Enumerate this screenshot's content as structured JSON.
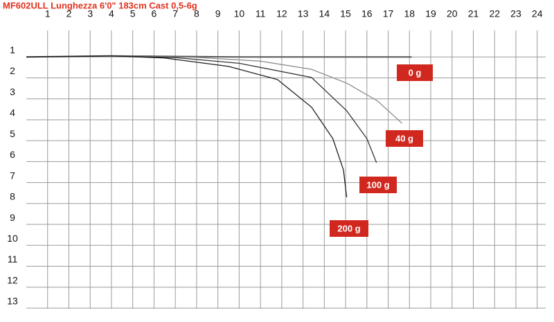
{
  "chart_data": {
    "type": "line",
    "title": "MF602ULL Lunghezza 6'0\" 183cm Cast 0,5-6g",
    "xlim": [
      0,
      24.4
    ],
    "ylim": [
      -0.2,
      13.2
    ],
    "y_inverted": true,
    "grid": true,
    "xticks": [
      1,
      2,
      3,
      4,
      5,
      6,
      7,
      8,
      9,
      10,
      11,
      12,
      13,
      14,
      15,
      16,
      17,
      18,
      19,
      20,
      21,
      22,
      23,
      24
    ],
    "yticks": [
      1,
      2,
      3,
      4,
      5,
      6,
      7,
      8,
      9,
      10,
      11,
      12,
      13
    ],
    "label_color": "#d0281f",
    "series": [
      {
        "name": "0 g",
        "color": "#555555",
        "x": [
          0,
          4,
          10,
          18.1
        ],
        "values": [
          1,
          0.95,
          1,
          1
        ]
      },
      {
        "name": "40 g",
        "color": "#8a8a8a",
        "x": [
          0,
          4,
          8,
          11,
          13.4,
          15.05,
          16.5,
          17.65
        ],
        "values": [
          1,
          0.95,
          1.02,
          1.2,
          1.59,
          2.25,
          3.1,
          4.17
        ]
      },
      {
        "name": "100 g",
        "color": "#333333",
        "x": [
          0,
          4,
          7,
          10,
          13.4,
          15.05,
          16.0,
          16.45
        ],
        "values": [
          1,
          0.95,
          1.03,
          1.3,
          1.98,
          3.57,
          4.9,
          6.05
        ]
      },
      {
        "name": "200 g",
        "color": "#1a1a1a",
        "x": [
          0,
          4,
          6.5,
          9.5,
          11.8,
          13.4,
          14.4,
          14.9,
          15.05
        ],
        "values": [
          1,
          0.95,
          1.05,
          1.45,
          2.08,
          3.4,
          4.9,
          6.4,
          7.7
        ]
      }
    ]
  }
}
